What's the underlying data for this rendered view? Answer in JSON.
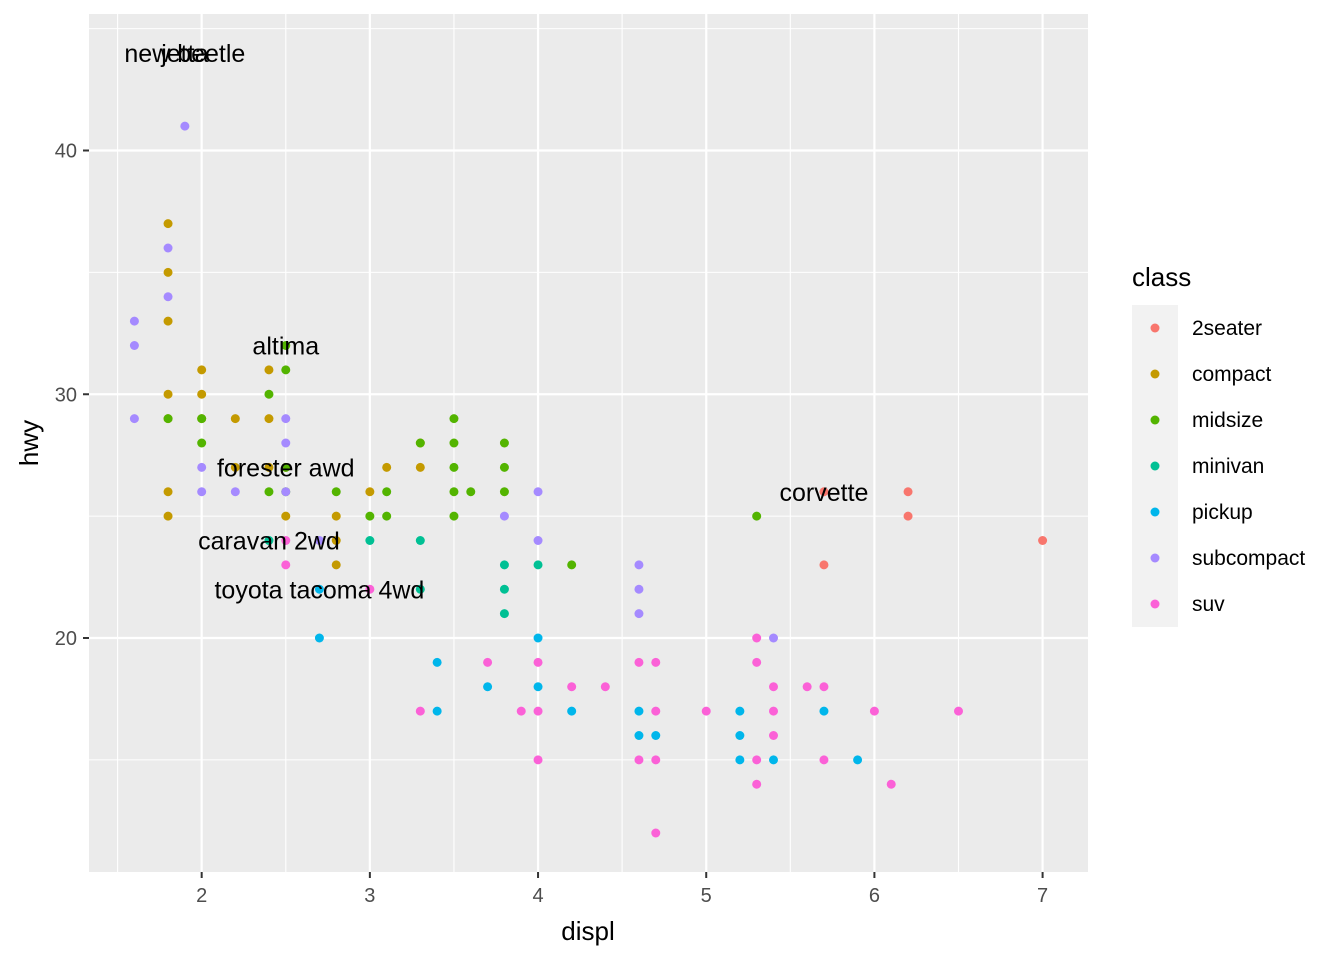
{
  "chart_data": {
    "type": "scatter",
    "xlabel": "displ",
    "ylabel": "hwy",
    "xlim": [
      1.33,
      7.27
    ],
    "ylim": [
      10.4,
      45.6
    ],
    "x_ticks": [
      2,
      3,
      4,
      5,
      6,
      7
    ],
    "y_ticks": [
      20,
      30,
      40
    ],
    "grid": true,
    "legend": {
      "title": "class",
      "position": "right",
      "entries": [
        {
          "name": "2seater",
          "color": "#F8766D"
        },
        {
          "name": "compact",
          "color": "#C49A00"
        },
        {
          "name": "midsize",
          "color": "#53B400"
        },
        {
          "name": "minivan",
          "color": "#00C094"
        },
        {
          "name": "pickup",
          "color": "#00B6EB"
        },
        {
          "name": "subcompact",
          "color": "#A58AFF"
        },
        {
          "name": "suv",
          "color": "#FB61D7"
        }
      ]
    },
    "series": [
      {
        "name": "2seater",
        "color": "#F8766D",
        "points": [
          [
            5.7,
            26
          ],
          [
            5.7,
            23
          ],
          [
            6.2,
            26
          ],
          [
            6.2,
            25
          ],
          [
            7.0,
            24
          ]
        ]
      },
      {
        "name": "compact",
        "color": "#C49A00",
        "points": [
          [
            1.8,
            37
          ],
          [
            1.8,
            35
          ],
          [
            1.8,
            33
          ],
          [
            1.8,
            30
          ],
          [
            1.8,
            29
          ],
          [
            1.8,
            26
          ],
          [
            1.8,
            25
          ],
          [
            2.0,
            31
          ],
          [
            2.0,
            30
          ],
          [
            2.0,
            29
          ],
          [
            2.2,
            29
          ],
          [
            2.2,
            27
          ],
          [
            2.4,
            31
          ],
          [
            2.4,
            29
          ],
          [
            2.4,
            27
          ],
          [
            2.5,
            27
          ],
          [
            2.5,
            25
          ],
          [
            2.8,
            25
          ],
          [
            2.8,
            24
          ],
          [
            2.8,
            23
          ],
          [
            3.0,
            26
          ],
          [
            3.1,
            27
          ],
          [
            3.3,
            27
          ],
          [
            3.3,
            28
          ]
        ]
      },
      {
        "name": "midsize",
        "color": "#53B400",
        "points": [
          [
            1.8,
            29
          ],
          [
            2.0,
            29
          ],
          [
            2.0,
            28
          ],
          [
            2.4,
            30
          ],
          [
            2.4,
            26
          ],
          [
            2.5,
            32
          ],
          [
            2.5,
            31
          ],
          [
            2.5,
            27
          ],
          [
            2.5,
            26
          ],
          [
            2.8,
            26
          ],
          [
            3.0,
            25
          ],
          [
            3.1,
            26
          ],
          [
            3.1,
            25
          ],
          [
            3.3,
            28
          ],
          [
            3.5,
            29
          ],
          [
            3.5,
            28
          ],
          [
            3.5,
            27
          ],
          [
            3.5,
            26
          ],
          [
            3.5,
            25
          ],
          [
            3.6,
            26
          ],
          [
            3.8,
            28
          ],
          [
            3.8,
            27
          ],
          [
            3.8,
            26
          ],
          [
            4.2,
            23
          ],
          [
            5.3,
            25
          ]
        ]
      },
      {
        "name": "minivan",
        "color": "#00C094",
        "points": [
          [
            2.4,
            24
          ],
          [
            3.0,
            24
          ],
          [
            3.3,
            24
          ],
          [
            3.3,
            22
          ],
          [
            3.8,
            23
          ],
          [
            3.8,
            22
          ],
          [
            3.8,
            21
          ],
          [
            4.0,
            23
          ]
        ]
      },
      {
        "name": "pickup",
        "color": "#00B6EB",
        "points": [
          [
            2.7,
            22
          ],
          [
            2.7,
            20
          ],
          [
            3.4,
            19
          ],
          [
            3.4,
            17
          ],
          [
            3.7,
            18
          ],
          [
            4.0,
            20
          ],
          [
            4.0,
            18
          ],
          [
            4.2,
            17
          ],
          [
            4.6,
            17
          ],
          [
            4.6,
            16
          ],
          [
            4.7,
            16
          ],
          [
            5.2,
            17
          ],
          [
            5.2,
            16
          ],
          [
            5.2,
            15
          ],
          [
            5.4,
            15
          ],
          [
            5.7,
            17
          ],
          [
            5.9,
            15
          ]
        ]
      },
      {
        "name": "subcompact",
        "color": "#A58AFF",
        "points": [
          [
            1.6,
            33
          ],
          [
            1.6,
            32
          ],
          [
            1.6,
            29
          ],
          [
            1.8,
            36
          ],
          [
            1.8,
            34
          ],
          [
            1.9,
            41
          ],
          [
            2.0,
            27
          ],
          [
            2.0,
            26
          ],
          [
            2.2,
            26
          ],
          [
            2.5,
            29
          ],
          [
            2.5,
            28
          ],
          [
            2.5,
            26
          ],
          [
            2.7,
            24
          ],
          [
            3.8,
            25
          ],
          [
            4.0,
            26
          ],
          [
            4.0,
            24
          ],
          [
            4.6,
            23
          ],
          [
            4.6,
            22
          ],
          [
            4.6,
            21
          ],
          [
            5.4,
            20
          ]
        ]
      },
      {
        "name": "suv",
        "color": "#FB61D7",
        "points": [
          [
            2.5,
            24
          ],
          [
            2.5,
            23
          ],
          [
            3.0,
            22
          ],
          [
            3.3,
            17
          ],
          [
            3.7,
            19
          ],
          [
            3.9,
            17
          ],
          [
            4.0,
            19
          ],
          [
            4.0,
            17
          ],
          [
            4.0,
            15
          ],
          [
            4.2,
            18
          ],
          [
            4.4,
            18
          ],
          [
            4.6,
            19
          ],
          [
            4.6,
            15
          ],
          [
            4.7,
            19
          ],
          [
            4.7,
            17
          ],
          [
            4.7,
            15
          ],
          [
            4.7,
            12
          ],
          [
            5.0,
            17
          ],
          [
            5.3,
            20
          ],
          [
            5.3,
            19
          ],
          [
            5.3,
            15
          ],
          [
            5.3,
            14
          ],
          [
            5.4,
            18
          ],
          [
            5.4,
            17
          ],
          [
            5.4,
            16
          ],
          [
            5.6,
            18
          ],
          [
            5.7,
            18
          ],
          [
            5.7,
            15
          ],
          [
            6.0,
            17
          ],
          [
            6.1,
            14
          ],
          [
            6.5,
            17
          ]
        ]
      }
    ],
    "annotations": [
      {
        "text": "new beetle",
        "x": 1.9,
        "y": 44
      },
      {
        "text": "jetta",
        "x": 1.9,
        "y": 44
      },
      {
        "text": "altima",
        "x": 2.5,
        "y": 32
      },
      {
        "text": "forester awd",
        "x": 2.5,
        "y": 27
      },
      {
        "text": "corvette",
        "x": 5.7,
        "y": 26
      },
      {
        "text": "caravan 2wd",
        "x": 2.4,
        "y": 24
      },
      {
        "text": "toyota tacoma 4wd",
        "x": 2.7,
        "y": 22
      }
    ]
  }
}
